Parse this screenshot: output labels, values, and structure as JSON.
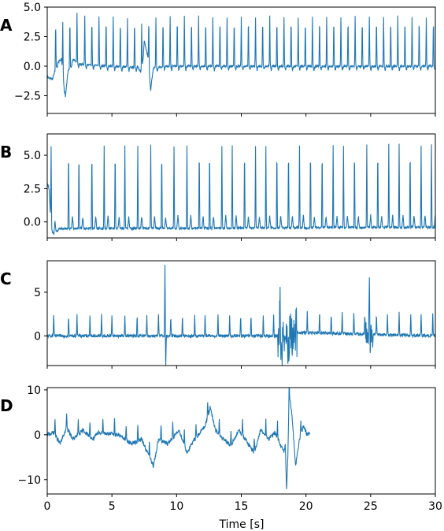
{
  "chart_data": [
    {
      "type": "line",
      "panel_label": "A",
      "x_range": [
        0,
        30
      ],
      "ylim": [
        -4.0,
        5.0
      ],
      "y_ticks": [
        -2.5,
        0.0,
        2.5,
        5.0
      ],
      "y_tick_labels": [
        "−2.5",
        "0.0",
        "2.5",
        "5.0"
      ],
      "color": "#1f77b4",
      "baseline": 0.0,
      "spike_height": 4.2,
      "spike_times": [
        0.65,
        1.2,
        1.75,
        2.3,
        2.9,
        3.45,
        4.0,
        4.55,
        5.1,
        5.65,
        6.2,
        6.75,
        7.3,
        7.85,
        8.4,
        8.95,
        9.5,
        10.05,
        10.6,
        11.15,
        11.7,
        12.25,
        12.8,
        13.35,
        13.9,
        14.45,
        15.0,
        15.55,
        16.1,
        16.65,
        17.2,
        17.75,
        18.3,
        18.85,
        19.4,
        19.95,
        20.5,
        21.05,
        21.6,
        22.15,
        22.7,
        23.25,
        23.8,
        24.35,
        24.9,
        25.45,
        26.0,
        26.55,
        27.1,
        27.65,
        28.2,
        28.75,
        29.3,
        29.85
      ],
      "waveform_points": [
        [
          0,
          -0.9
        ],
        [
          0.4,
          -1.1
        ],
        [
          0.8,
          0.3
        ],
        [
          1.1,
          0.6
        ],
        [
          1.4,
          -2.6
        ],
        [
          1.6,
          -0.5
        ],
        [
          2.0,
          0.6
        ],
        [
          2.4,
          0.2
        ],
        [
          3.0,
          0.1
        ],
        [
          5.0,
          0.0
        ],
        [
          7.0,
          -0.1
        ],
        [
          7.3,
          -0.6
        ],
        [
          7.5,
          2.1
        ],
        [
          7.8,
          0.7
        ],
        [
          8.0,
          -1.9
        ],
        [
          8.2,
          -0.2
        ],
        [
          9.0,
          0.0
        ],
        [
          30,
          0.0
        ]
      ]
    },
    {
      "type": "line",
      "panel_label": "B",
      "x_range": [
        0,
        30
      ],
      "ylim": [
        -1.2,
        6.6
      ],
      "y_ticks": [
        0.0,
        2.5,
        5.0
      ],
      "y_tick_labels": [
        "0.0",
        "2.5",
        "5.0"
      ],
      "color": "#1f77b4",
      "baseline": -0.4,
      "spike_height": 6.2,
      "spike_times": [
        0.3,
        1.65,
        2.45,
        3.45,
        4.4,
        5.25,
        6.0,
        7.0,
        8.0,
        8.85,
        9.8,
        10.8,
        11.75,
        12.55,
        13.5,
        14.3,
        15.25,
        16.1,
        16.9,
        17.75,
        18.65,
        19.5,
        20.35,
        21.25,
        22.1,
        22.9,
        23.75,
        24.7,
        25.55,
        26.4,
        27.2,
        28.05,
        28.9,
        29.7
      ],
      "waveform_points": [
        [
          0,
          2.9
        ],
        [
          0.15,
          2.5
        ],
        [
          0.3,
          -0.6
        ],
        [
          0.5,
          -0.9
        ],
        [
          1.0,
          -0.5
        ],
        [
          30,
          -0.4
        ]
      ]
    },
    {
      "type": "line",
      "panel_label": "C",
      "x_range": [
        0,
        30
      ],
      "ylim": [
        -3.4,
        8.6
      ],
      "y_ticks": [
        0,
        5
      ],
      "y_tick_labels": [
        "0",
        "5"
      ],
      "color": "#1f77b4",
      "baseline": 0.0,
      "spike_height": 2.5,
      "spike_times": [
        0.5,
        1.65,
        2.3,
        3.3,
        4.2,
        5.0,
        6.0,
        6.95,
        7.7,
        8.6,
        9.55,
        10.45,
        11.4,
        12.2,
        13.2,
        14.1,
        14.95,
        15.75,
        16.7,
        17.5,
        18.45,
        19.25,
        20.1,
        21.05,
        21.95,
        22.8,
        23.7,
        24.55,
        25.45,
        26.3,
        27.2,
        28.1,
        28.9,
        29.8
      ],
      "big_spikes": [
        [
          9.1,
          8.1
        ],
        [
          18.0,
          7.0
        ],
        [
          24.9,
          8.0
        ]
      ],
      "waveform_points": [
        [
          0,
          0.0
        ],
        [
          18.0,
          0.0
        ],
        [
          18.3,
          -1.2
        ],
        [
          19.0,
          0.4
        ],
        [
          30,
          0.0
        ]
      ]
    },
    {
      "type": "line",
      "panel_label": "D",
      "x_range": [
        0,
        20.3
      ],
      "ylim": [
        -13.2,
        10.5
      ],
      "y_ticks": [
        -10,
        0,
        10
      ],
      "y_tick_labels": [
        "−10",
        "0",
        "10"
      ],
      "color": "#1f77b4",
      "baseline": 0.0,
      "spike_height": 3.5,
      "spike_times": [
        0.6,
        1.5,
        2.4,
        3.3,
        4.3,
        5.2,
        6.1,
        7.0,
        7.9,
        8.8,
        9.7,
        10.6,
        11.5,
        12.4,
        13.3,
        14.2,
        15.1,
        16.0,
        16.9,
        17.8,
        18.7,
        19.6
      ],
      "waveform_points": [
        [
          0,
          0.0
        ],
        [
          0.5,
          0.5
        ],
        [
          1.0,
          -2.0
        ],
        [
          1.5,
          1.5
        ],
        [
          2.0,
          -1.0
        ],
        [
          2.8,
          1.0
        ],
        [
          3.5,
          -1.0
        ],
        [
          4.0,
          0.5
        ],
        [
          5.5,
          0.0
        ],
        [
          6.5,
          -2.0
        ],
        [
          7.3,
          -1.0
        ],
        [
          8.2,
          -7.0
        ],
        [
          8.6,
          -1.0
        ],
        [
          9.3,
          -2.0
        ],
        [
          10.2,
          1.0
        ],
        [
          10.8,
          -4.0
        ],
        [
          11.3,
          -1.5
        ],
        [
          12.2,
          2.0
        ],
        [
          12.6,
          6.0
        ],
        [
          13.0,
          1.0
        ],
        [
          13.6,
          -1.0
        ],
        [
          14.2,
          -2.5
        ],
        [
          14.8,
          1.0
        ],
        [
          15.3,
          -1.0
        ],
        [
          16.0,
          -4.0
        ],
        [
          16.5,
          1.0
        ],
        [
          17.1,
          -1.0
        ],
        [
          17.6,
          0.5
        ],
        [
          18.3,
          -4.0
        ],
        [
          18.4,
          -2.0
        ],
        [
          18.5,
          -12.5
        ],
        [
          18.6,
          -5.0
        ],
        [
          18.7,
          9.0
        ],
        [
          18.9,
          5.0
        ],
        [
          19.2,
          -7.0
        ],
        [
          19.5,
          -1.0
        ],
        [
          19.8,
          2.0
        ],
        [
          20.1,
          0.0
        ],
        [
          20.3,
          0.5
        ]
      ]
    }
  ],
  "x_axis": {
    "label": "Time [s]",
    "ticks": [
      0,
      5,
      10,
      15,
      20,
      25,
      30
    ],
    "tick_labels": [
      "0",
      "5",
      "10",
      "15",
      "20",
      "25",
      "30"
    ]
  }
}
